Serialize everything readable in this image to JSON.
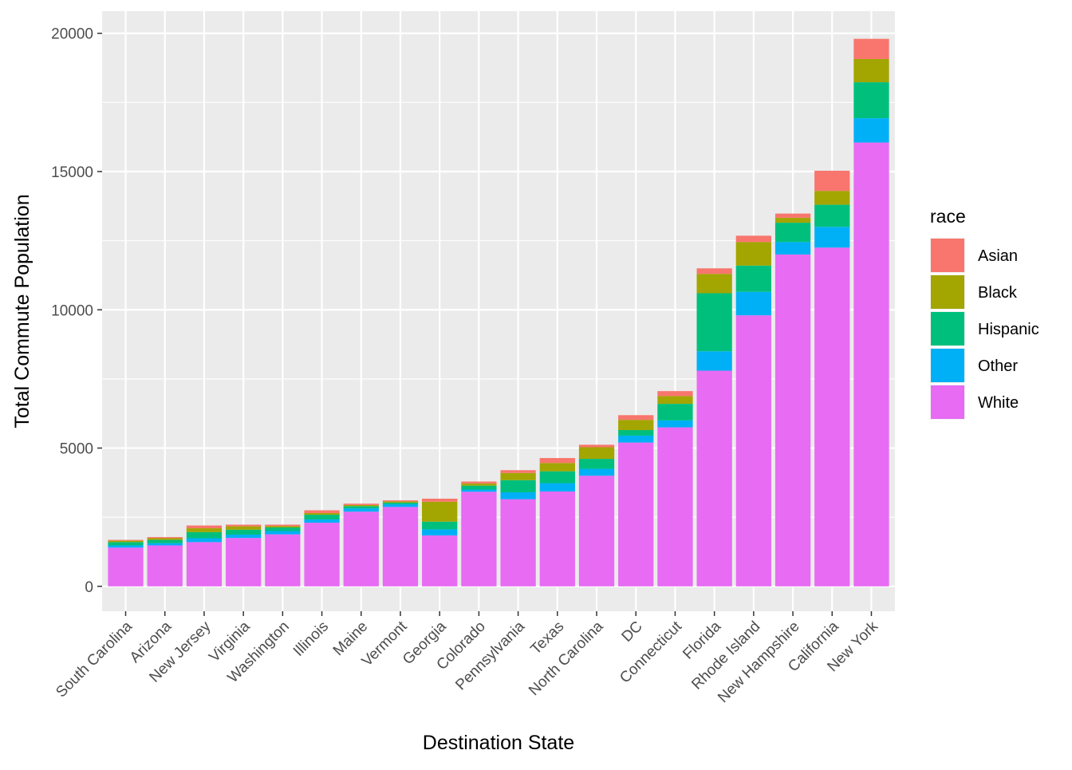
{
  "chart_data": {
    "type": "bar",
    "stacked": true,
    "xlabel": "Destination State",
    "ylabel": "Total Commute Population",
    "ylim": [
      -900,
      20800
    ],
    "yticks": [
      0,
      5000,
      10000,
      15000,
      20000
    ],
    "grid": true,
    "legend": {
      "title": "race",
      "position": "right"
    },
    "categories": [
      "South Carolina",
      "Arizona",
      "New Jersey",
      "Virginia",
      "Washington",
      "Illinois",
      "Maine",
      "Vermont",
      "Georgia",
      "Colorado",
      "Pennsylvania",
      "Texas",
      "North Carolina",
      "DC",
      "Connecticut",
      "Florida",
      "Rhode Island",
      "New Hampshire",
      "California",
      "New York"
    ],
    "series": [
      {
        "name": "White",
        "color": "#E76BF3",
        "values": [
          1400,
          1480,
          1600,
          1750,
          1880,
          2300,
          2700,
          2870,
          1840,
          3420,
          3150,
          3430,
          4000,
          5200,
          5750,
          7800,
          9800,
          12000,
          12250,
          16050
        ]
      },
      {
        "name": "Other",
        "color": "#00B0F6",
        "values": [
          80,
          80,
          140,
          120,
          120,
          120,
          120,
          100,
          220,
          80,
          250,
          300,
          250,
          250,
          250,
          700,
          850,
          450,
          750,
          880
        ]
      },
      {
        "name": "Hispanic",
        "color": "#00BF7D",
        "values": [
          120,
          120,
          220,
          180,
          130,
          170,
          80,
          60,
          280,
          140,
          440,
          430,
          360,
          200,
          600,
          2100,
          950,
          700,
          800,
          1300
        ]
      },
      {
        "name": "Black",
        "color": "#A3A500",
        "values": [
          50,
          60,
          140,
          120,
          50,
          60,
          40,
          40,
          720,
          80,
          260,
          300,
          420,
          370,
          280,
          700,
          850,
          180,
          500,
          840
        ]
      },
      {
        "name": "Asian",
        "color": "#F8766D",
        "values": [
          30,
          40,
          100,
          60,
          50,
          100,
          50,
          40,
          110,
          70,
          100,
          180,
          90,
          170,
          180,
          200,
          230,
          150,
          730,
          730
        ]
      }
    ],
    "legend_order": [
      "Asian",
      "Black",
      "Hispanic",
      "Other",
      "White"
    ]
  }
}
